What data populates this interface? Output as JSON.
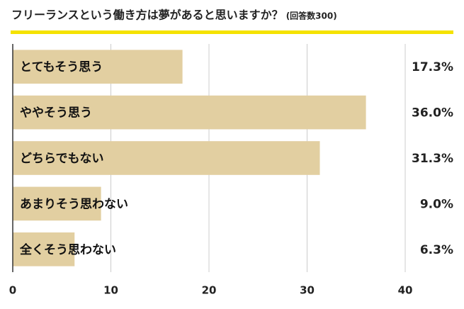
{
  "chart_data": {
    "type": "bar",
    "orientation": "horizontal",
    "title": "フリーランスという働き方は夢があると思いますか？",
    "subtitle": "(回答数300)",
    "categories": [
      "とてもそう思う",
      "ややそう思う",
      "どちらでもない",
      "あまりそう思わない",
      "全くそう思わない"
    ],
    "values": [
      17.3,
      36.0,
      31.3,
      9.0,
      6.3
    ],
    "value_labels": [
      "17.3%",
      "36.0%",
      "31.3%",
      "9.0%",
      "6.3%"
    ],
    "color": "#e2cfa1",
    "xlim": [
      0,
      40
    ],
    "xticks": [
      0,
      10,
      20,
      30,
      40
    ],
    "grid": true
  }
}
